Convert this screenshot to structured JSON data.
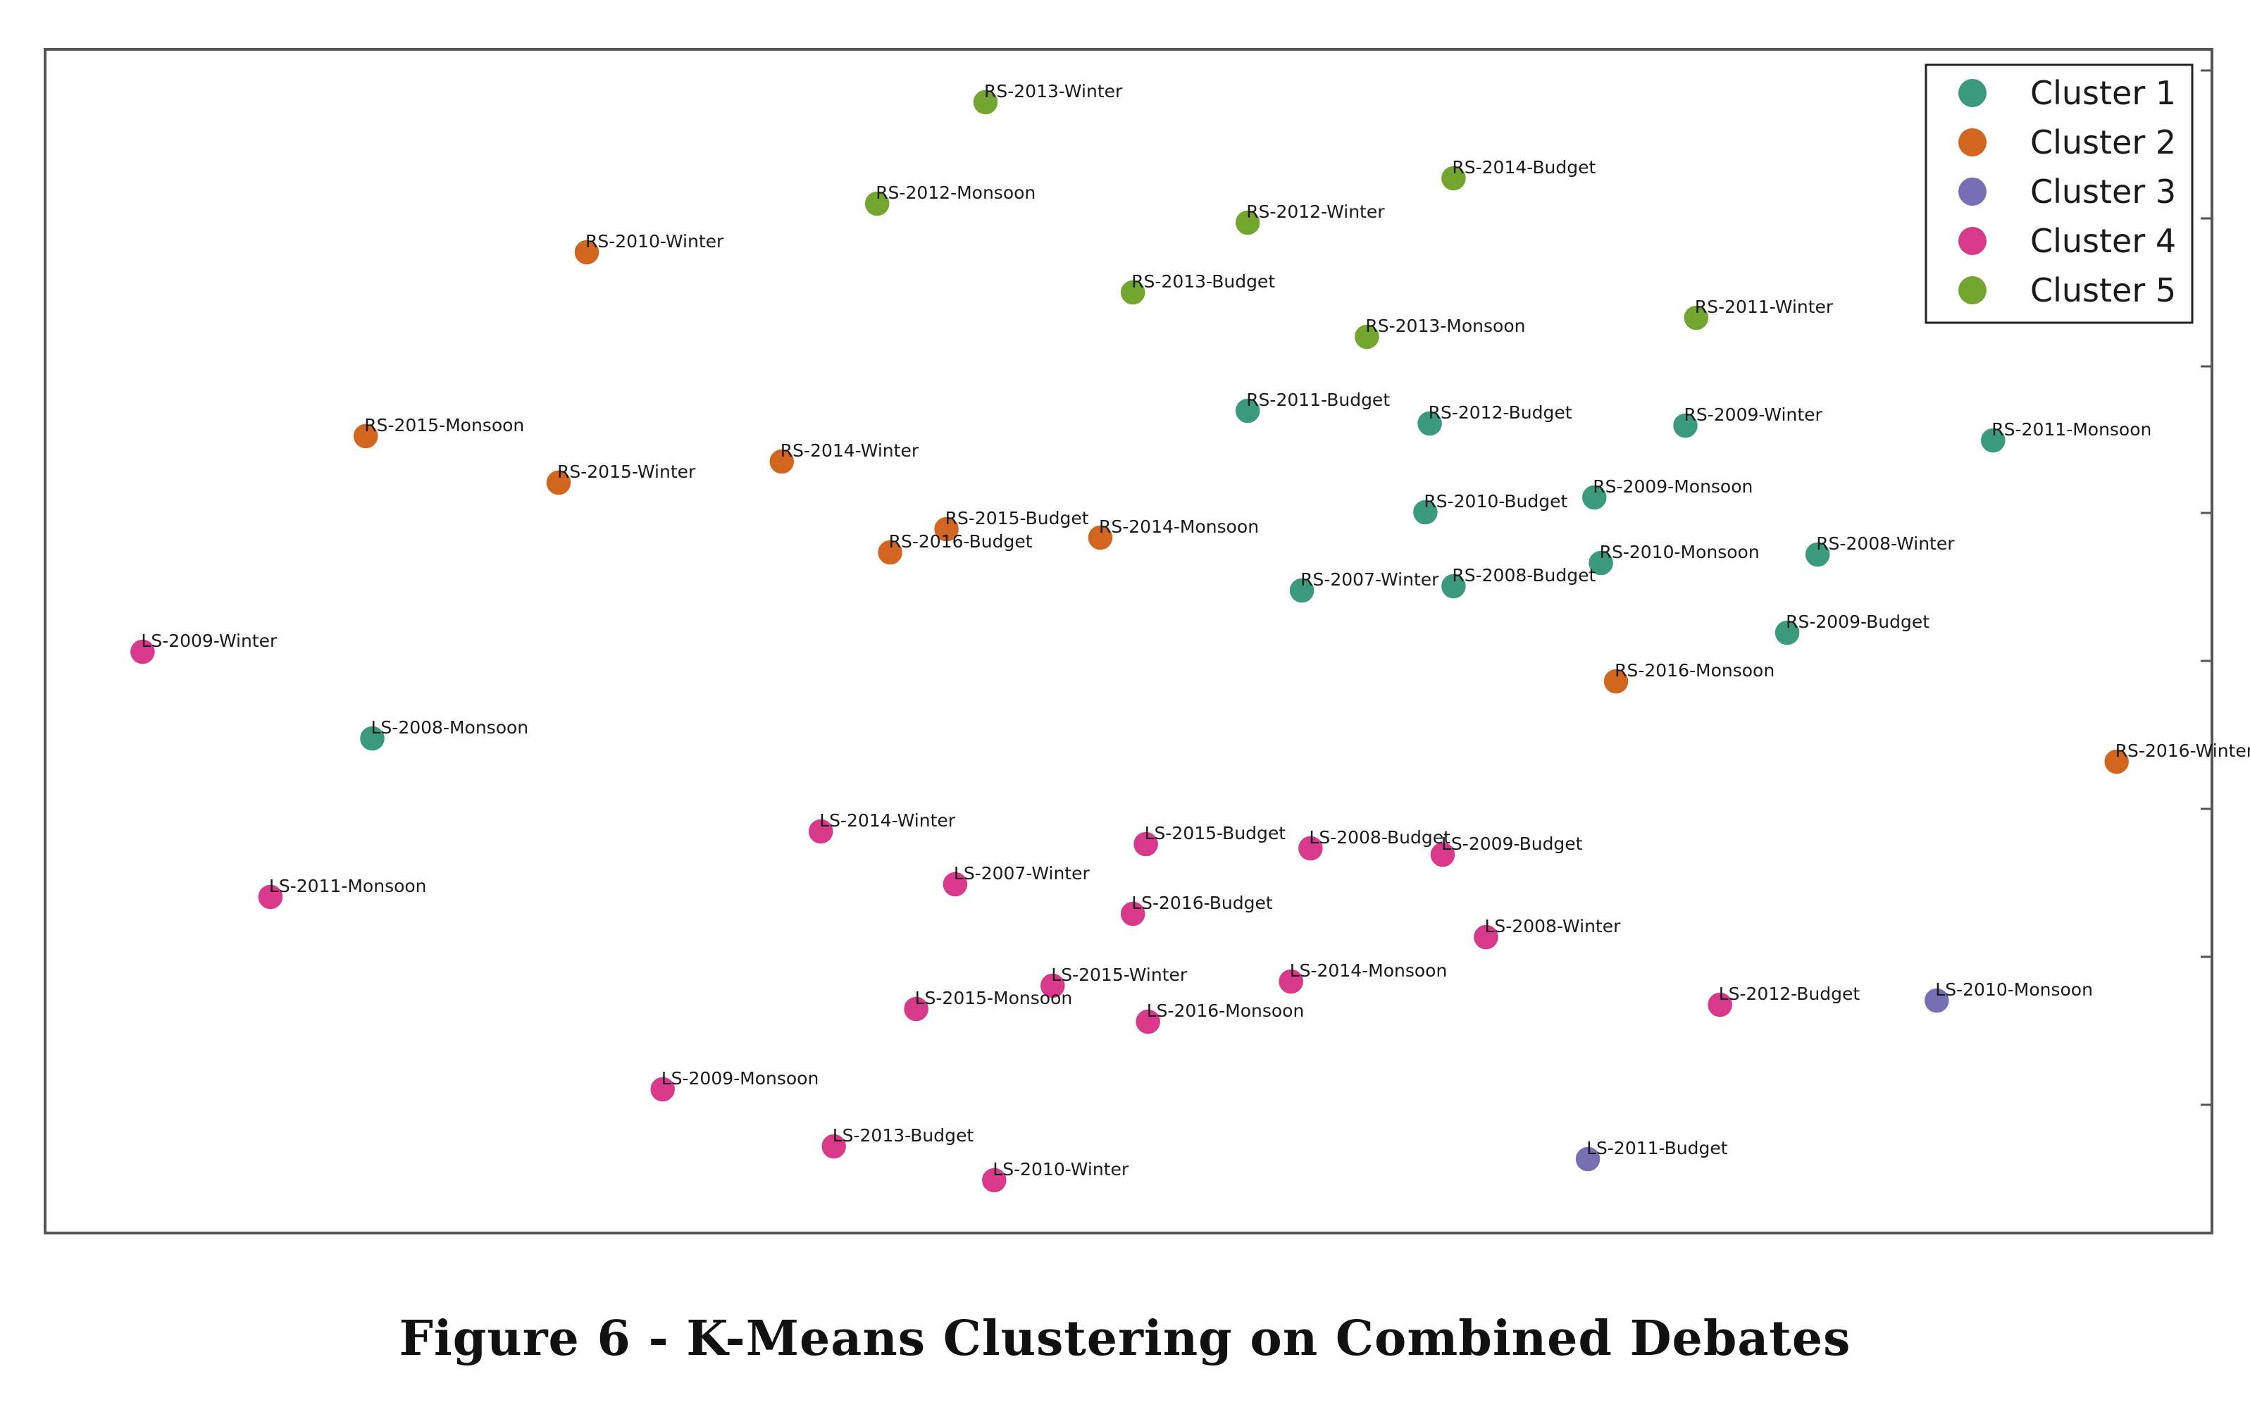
{
  "caption": "Figure 6 - K-Means Clustering on Combined Debates",
  "chart_data": {
    "type": "scatter",
    "title": "",
    "xlabel": "",
    "ylabel": "",
    "grid": false,
    "legend_position": "top-right",
    "xlim": [
      0,
      1000
    ],
    "ylim": [
      0,
      560
    ],
    "series": [
      {
        "name": "Cluster 1",
        "color": "#3a9b7c",
        "points": [
          {
            "label": "RS-2011-Budget",
            "x": 555,
            "y": 389
          },
          {
            "label": "RS-2012-Budget",
            "x": 639,
            "y": 383
          },
          {
            "label": "RS-2009-Winter",
            "x": 757,
            "y": 382
          },
          {
            "label": "RS-2011-Monsoon",
            "x": 899,
            "y": 375
          },
          {
            "label": "RS-2009-Monsoon",
            "x": 715,
            "y": 348
          },
          {
            "label": "RS-2010-Budget",
            "x": 637,
            "y": 341
          },
          {
            "label": "RS-2010-Monsoon",
            "x": 718,
            "y": 317
          },
          {
            "label": "RS-2008-Winter",
            "x": 818,
            "y": 321
          },
          {
            "label": "RS-2007-Winter",
            "x": 580,
            "y": 304
          },
          {
            "label": "RS-2008-Budget",
            "x": 650,
            "y": 306
          },
          {
            "label": "RS-2009-Budget",
            "x": 804,
            "y": 284
          },
          {
            "label": "LS-2008-Monsoon",
            "x": 151,
            "y": 234
          }
        ]
      },
      {
        "name": "Cluster 2",
        "color": "#d2661f",
        "points": [
          {
            "label": "RS-2010-Winter",
            "x": 250,
            "y": 464
          },
          {
            "label": "RS-2015-Monsoon",
            "x": 148,
            "y": 377
          },
          {
            "label": "RS-2015-Winter",
            "x": 237,
            "y": 355
          },
          {
            "label": "RS-2014-Winter",
            "x": 340,
            "y": 365
          },
          {
            "label": "RS-2015-Budget",
            "x": 416,
            "y": 333
          },
          {
            "label": "RS-2014-Monsoon",
            "x": 487,
            "y": 329
          },
          {
            "label": "RS-2016-Budget",
            "x": 390,
            "y": 322
          },
          {
            "label": "RS-2016-Monsoon",
            "x": 725,
            "y": 261
          },
          {
            "label": "RS-2016-Winter",
            "x": 956,
            "y": 223
          }
        ]
      },
      {
        "name": "Cluster 3",
        "color": "#7570b3",
        "points": [
          {
            "label": "LS-2010-Monsoon",
            "x": 873,
            "y": 110
          },
          {
            "label": "LS-2011-Budget",
            "x": 712,
            "y": 35
          }
        ]
      },
      {
        "name": "Cluster 4",
        "color": "#d9398a",
        "points": [
          {
            "label": "LS-2009-Winter",
            "x": 45,
            "y": 275
          },
          {
            "label": "LS-2014-Winter",
            "x": 358,
            "y": 190
          },
          {
            "label": "LS-2015-Budget",
            "x": 508,
            "y": 184
          },
          {
            "label": "LS-2008-Budget",
            "x": 584,
            "y": 182
          },
          {
            "label": "LS-2009-Budget",
            "x": 645,
            "y": 179
          },
          {
            "label": "LS-2011-Monsoon",
            "x": 104,
            "y": 159
          },
          {
            "label": "LS-2007-Winter",
            "x": 420,
            "y": 165
          },
          {
            "label": "LS-2016-Budget",
            "x": 502,
            "y": 151
          },
          {
            "label": "LS-2008-Winter",
            "x": 665,
            "y": 140
          },
          {
            "label": "LS-2014-Monsoon",
            "x": 575,
            "y": 119
          },
          {
            "label": "LS-2015-Winter",
            "x": 465,
            "y": 117
          },
          {
            "label": "LS-2015-Monsoon",
            "x": 402,
            "y": 106
          },
          {
            "label": "LS-2016-Monsoon",
            "x": 509,
            "y": 100
          },
          {
            "label": "LS-2012-Budget",
            "x": 773,
            "y": 108
          },
          {
            "label": "LS-2009-Monsoon",
            "x": 285,
            "y": 68
          },
          {
            "label": "LS-2013-Budget",
            "x": 364,
            "y": 41
          },
          {
            "label": "LS-2010-Winter",
            "x": 438,
            "y": 25
          }
        ]
      },
      {
        "name": "Cluster 5",
        "color": "#72a62e",
        "points": [
          {
            "label": "RS-2013-Winter",
            "x": 434,
            "y": 535
          },
          {
            "label": "RS-2012-Monsoon",
            "x": 384,
            "y": 487
          },
          {
            "label": "RS-2014-Budget",
            "x": 650,
            "y": 499
          },
          {
            "label": "RS-2012-Winter",
            "x": 555,
            "y": 478
          },
          {
            "label": "RS-2013-Budget",
            "x": 502,
            "y": 445
          },
          {
            "label": "RS-2013-Monsoon",
            "x": 610,
            "y": 424
          },
          {
            "label": "RS-2011-Winter",
            "x": 762,
            "y": 433
          }
        ]
      }
    ]
  }
}
